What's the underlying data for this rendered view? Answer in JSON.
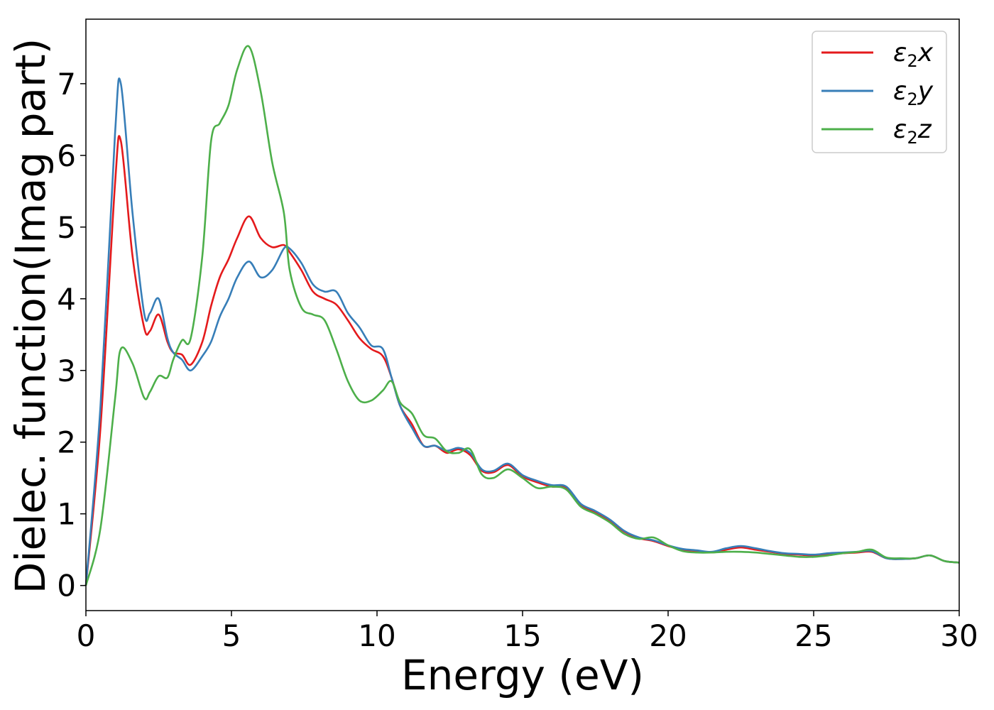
{
  "chart_data": {
    "type": "line",
    "xlabel": "Energy (eV)",
    "ylabel": "Dielec. function(Imag part)",
    "xlim": [
      0,
      30
    ],
    "ylim": [
      -0.35,
      7.9
    ],
    "xticks": [
      0,
      5,
      10,
      15,
      20,
      25,
      30
    ],
    "yticks": [
      0,
      1,
      2,
      3,
      4,
      5,
      6,
      7
    ],
    "grid": false,
    "legend_position": "top-right",
    "x": [
      0,
      0.5,
      1.0,
      1.2,
      1.6,
      2.0,
      2.2,
      2.5,
      2.8,
      3.0,
      3.3,
      3.6,
      4.0,
      4.3,
      4.6,
      4.9,
      5.2,
      5.6,
      6.0,
      6.4,
      6.8,
      7.0,
      7.4,
      7.8,
      8.2,
      8.6,
      9.0,
      9.4,
      9.8,
      10.2,
      10.5,
      10.8,
      11.2,
      11.6,
      12.0,
      12.4,
      12.8,
      13.2,
      13.6,
      14.0,
      14.5,
      15.0,
      15.5,
      16.0,
      16.5,
      17.0,
      17.5,
      18.0,
      18.5,
      19.0,
      19.5,
      20.0,
      20.5,
      21.0,
      21.5,
      22.0,
      22.5,
      23.0,
      23.5,
      24.0,
      24.5,
      25.0,
      25.5,
      26.0,
      26.5,
      27.0,
      27.5,
      28.0,
      28.5,
      29.0,
      29.5,
      30.0
    ],
    "series": [
      {
        "name": "ε2x",
        "label_base": "ε",
        "label_sub": "2",
        "label_tail": "x",
        "color": "#e41a1c",
        "values": [
          0.0,
          2.2,
          5.6,
          6.2,
          4.6,
          3.6,
          3.55,
          3.78,
          3.4,
          3.25,
          3.22,
          3.08,
          3.4,
          3.9,
          4.3,
          4.55,
          4.85,
          5.15,
          4.85,
          4.72,
          4.75,
          4.65,
          4.4,
          4.1,
          4.0,
          3.92,
          3.7,
          3.45,
          3.3,
          3.2,
          2.9,
          2.5,
          2.25,
          1.95,
          1.95,
          1.85,
          1.9,
          1.82,
          1.6,
          1.58,
          1.68,
          1.52,
          1.44,
          1.38,
          1.36,
          1.12,
          1.02,
          0.9,
          0.75,
          0.66,
          0.62,
          0.55,
          0.5,
          0.48,
          0.46,
          0.5,
          0.53,
          0.5,
          0.47,
          0.44,
          0.43,
          0.42,
          0.44,
          0.45,
          0.46,
          0.47,
          0.38,
          0.37,
          0.38,
          0.42,
          0.34,
          0.32
        ]
      },
      {
        "name": "ε2y",
        "label_base": "ε",
        "label_sub": "2",
        "label_tail": "y",
        "color": "#377eb8",
        "values": [
          0.0,
          2.5,
          6.3,
          7.0,
          5.2,
          3.8,
          3.8,
          4.0,
          3.45,
          3.25,
          3.15,
          3.0,
          3.2,
          3.4,
          3.75,
          4.0,
          4.3,
          4.52,
          4.3,
          4.4,
          4.7,
          4.7,
          4.5,
          4.2,
          4.1,
          4.1,
          3.8,
          3.6,
          3.35,
          3.3,
          2.9,
          2.5,
          2.2,
          1.95,
          1.95,
          1.88,
          1.92,
          1.85,
          1.62,
          1.6,
          1.7,
          1.54,
          1.46,
          1.4,
          1.38,
          1.14,
          1.04,
          0.92,
          0.76,
          0.67,
          0.63,
          0.56,
          0.51,
          0.49,
          0.47,
          0.52,
          0.55,
          0.52,
          0.48,
          0.45,
          0.44,
          0.43,
          0.45,
          0.46,
          0.47,
          0.48,
          0.38,
          0.37,
          0.38,
          0.42,
          0.34,
          0.32
        ]
      },
      {
        "name": "ε2z",
        "label_base": "ε",
        "label_sub": "2",
        "label_tail": "z",
        "color": "#4daf4a",
        "values": [
          0.0,
          0.8,
          2.6,
          3.3,
          3.1,
          2.62,
          2.7,
          2.92,
          2.9,
          3.15,
          3.42,
          3.45,
          4.6,
          6.2,
          6.45,
          6.7,
          7.2,
          7.52,
          6.9,
          5.9,
          5.2,
          4.4,
          3.88,
          3.78,
          3.7,
          3.3,
          2.85,
          2.58,
          2.58,
          2.72,
          2.85,
          2.55,
          2.4,
          2.1,
          2.05,
          1.87,
          1.85,
          1.9,
          1.55,
          1.5,
          1.62,
          1.5,
          1.36,
          1.38,
          1.34,
          1.1,
          1.0,
          0.88,
          0.72,
          0.65,
          0.67,
          0.56,
          0.48,
          0.46,
          0.46,
          0.47,
          0.47,
          0.46,
          0.44,
          0.42,
          0.4,
          0.4,
          0.42,
          0.45,
          0.47,
          0.5,
          0.39,
          0.38,
          0.38,
          0.42,
          0.34,
          0.32
        ]
      }
    ]
  }
}
